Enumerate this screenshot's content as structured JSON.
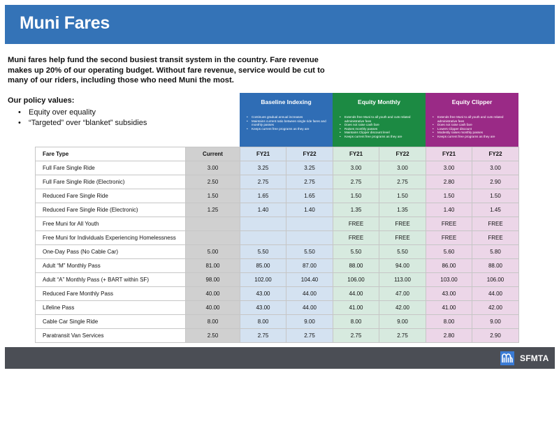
{
  "header": {
    "title": "Muni Fares"
  },
  "intro": "Muni fares help fund the second busiest transit system in the country. Fare revenue makes up 20% of our operating budget. Without fare revenue, service would be cut to many of our riders, including those who need Muni the most.",
  "policy": {
    "title": "Our policy values:",
    "items": [
      "Equity over equality",
      "“Targeted” over “blanket” subsidies"
    ]
  },
  "scenarios": {
    "baseline": {
      "title": "Baseline Indexing",
      "bullets": [
        "Continues gradual annual increases",
        "Maintains current ratio between single ride fares and monthly passes",
        "Keeps current free programs as they are"
      ]
    },
    "equity_monthly": {
      "title": "Equity Monthly",
      "bullets": [
        "Extends free Muni to all youth and cuts related administrative fees",
        "Does not raise cash fare",
        "Raises monthly passes",
        "Maintains Clipper discount level",
        "Keeps current free programs as they are"
      ]
    },
    "equity_clipper": {
      "title": "Equity Clipper",
      "bullets": [
        "Extends free Muni to all youth and cuts related administrative fees",
        "Does not raise cash fare",
        "Lowers Clipper discount",
        "Modestly raises monthly passes",
        "Keeps current free programs as they are"
      ]
    }
  },
  "table": {
    "columns": [
      "Fare Type",
      "Current",
      "FY21",
      "FY22",
      "FY21",
      "FY22",
      "FY21",
      "FY22"
    ],
    "rows": [
      [
        "Full Fare Single Ride",
        "3.00",
        "3.25",
        "3.25",
        "3.00",
        "3.00",
        "3.00",
        "3.00"
      ],
      [
        "Full Fare Single Ride (Electronic)",
        "2.50",
        "2.75",
        "2.75",
        "2.75",
        "2.75",
        "2.80",
        "2.90"
      ],
      [
        "Reduced Fare Single Ride",
        "1.50",
        "1.65",
        "1.65",
        "1.50",
        "1.50",
        "1.50",
        "1.50"
      ],
      [
        "Reduced Fare Single Ride (Electronic)",
        "1.25",
        "1.40",
        "1.40",
        "1.35",
        "1.35",
        "1.40",
        "1.45"
      ],
      [
        "Free Muni for All Youth",
        "",
        "",
        "",
        "FREE",
        "FREE",
        "FREE",
        "FREE"
      ],
      [
        "Free Muni for Individuals Experiencing Homelessness",
        "",
        "",
        "",
        "FREE",
        "FREE",
        "FREE",
        "FREE"
      ],
      [
        "One-Day Pass (No Cable Car)",
        "5.00",
        "5.50",
        "5.50",
        "5.50",
        "5.50",
        "5.60",
        "5.80"
      ],
      [
        "Adult “M” Monthly Pass",
        "81.00",
        "85.00",
        "87.00",
        "88.00",
        "94.00",
        "86.00",
        "88.00"
      ],
      [
        "Adult “A” Monthly Pass (+ BART within SF)",
        "98.00",
        "102.00",
        "104.40",
        "106.00",
        "113.00",
        "103.00",
        "106.00"
      ],
      [
        "Reduced Fare Monthly Pass",
        "40.00",
        "43.00",
        "44.00",
        "44.00",
        "47.00",
        "43.00",
        "44.00"
      ],
      [
        "Lifeline Pass",
        "40.00",
        "43.00",
        "44.00",
        "41.00",
        "42.00",
        "41.00",
        "42.00"
      ],
      [
        "Cable Car Single Ride",
        "8.00",
        "8.00",
        "9.00",
        "8.00",
        "9.00",
        "8.00",
        "9.00"
      ],
      [
        "Paratransit Van Services",
        "2.50",
        "2.75",
        "2.75",
        "2.75",
        "2.75",
        "2.80",
        "2.90"
      ]
    ]
  },
  "footer": {
    "logo_text": "SFMTA",
    "logo_icon": "muni-logo-icon"
  },
  "colors": {
    "banner": "#3473b7",
    "baseline": "#2f6db5",
    "equity_monthly": "#1c8a43",
    "equity_clipper": "#9a2a86",
    "footer": "#4b4e55"
  }
}
